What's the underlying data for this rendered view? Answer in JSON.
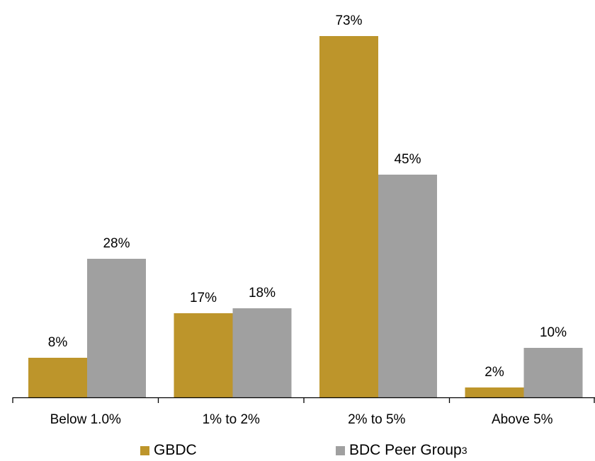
{
  "chart_data": {
    "type": "bar",
    "categories": [
      "Below 1.0%",
      "1% to 2%",
      "2% to 5%",
      "Above 5%"
    ],
    "series": [
      {
        "name": "GBDC",
        "values": [
          8,
          17,
          73,
          2
        ],
        "labels": [
          "8%",
          "17%",
          "73%",
          "2%"
        ],
        "color": "#BD952B"
      },
      {
        "name": "BDC Peer Group",
        "name_superscript": "3",
        "values": [
          28,
          18,
          45,
          10
        ],
        "labels": [
          "28%",
          "18%",
          "45%",
          "10%"
        ],
        "color": "#A0A0A0"
      }
    ],
    "title": "",
    "xlabel": "",
    "ylabel": "",
    "ylim": [
      0,
      80
    ],
    "grid": false,
    "legend_position": "bottom"
  }
}
